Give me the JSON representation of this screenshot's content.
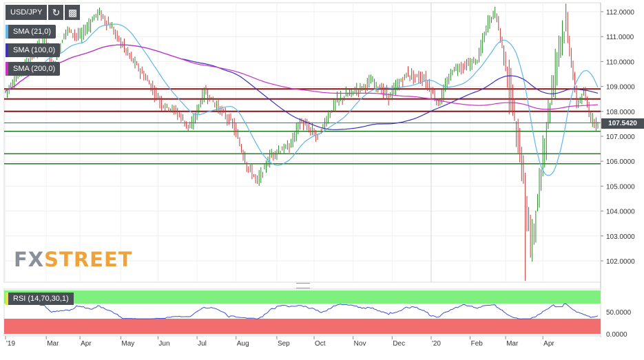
{
  "symbol": "USD/JPY",
  "toolbar": {
    "refresh_icon": "refresh-icon",
    "settings_icon": "chart-settings-icon"
  },
  "indicators": [
    {
      "label": "SMA (21,0)",
      "color": "#5fb6ea"
    },
    {
      "label": "SMA (100,0)",
      "color": "#3c31b8"
    },
    {
      "label": "SMA (200,0)",
      "color": "#c631c6"
    }
  ],
  "rsi": {
    "label": "RSI (14,70,30,1)",
    "levels": [
      "50.0000",
      "0.0000"
    ]
  },
  "last_price": "107.5420",
  "logo": {
    "part1": "FX",
    "part2": "STREET"
  },
  "chart_data": {
    "type": "ohlc",
    "y_ticks": [
      "112.0000",
      "111.0000",
      "110.0000",
      "109.0000",
      "108.0000",
      "107.0000",
      "106.0000",
      "105.0000",
      "104.0000",
      "103.0000",
      "102.0000"
    ],
    "x_ticks": [
      "'19",
      "Mar",
      "Apr",
      "May",
      "Jun",
      "Jul",
      "Aug",
      "Sep",
      "Oct",
      "Nov",
      "Dec",
      "'20",
      "Feb",
      "Mar",
      "Apr"
    ],
    "ylim": [
      101.1,
      112.4
    ],
    "resistance_lines": [
      108.9,
      108.5,
      108.0
    ],
    "support_lines": [
      107.2,
      106.3,
      105.9
    ],
    "colors": {
      "resistance": "#8b1414",
      "support": "#1f7a1f",
      "up": "#2a8a2a",
      "down": "#c43c3c",
      "rsi_line": "#3a4fcf",
      "overbought": "#7ef07e",
      "oversold": "#f26d6d"
    }
  }
}
